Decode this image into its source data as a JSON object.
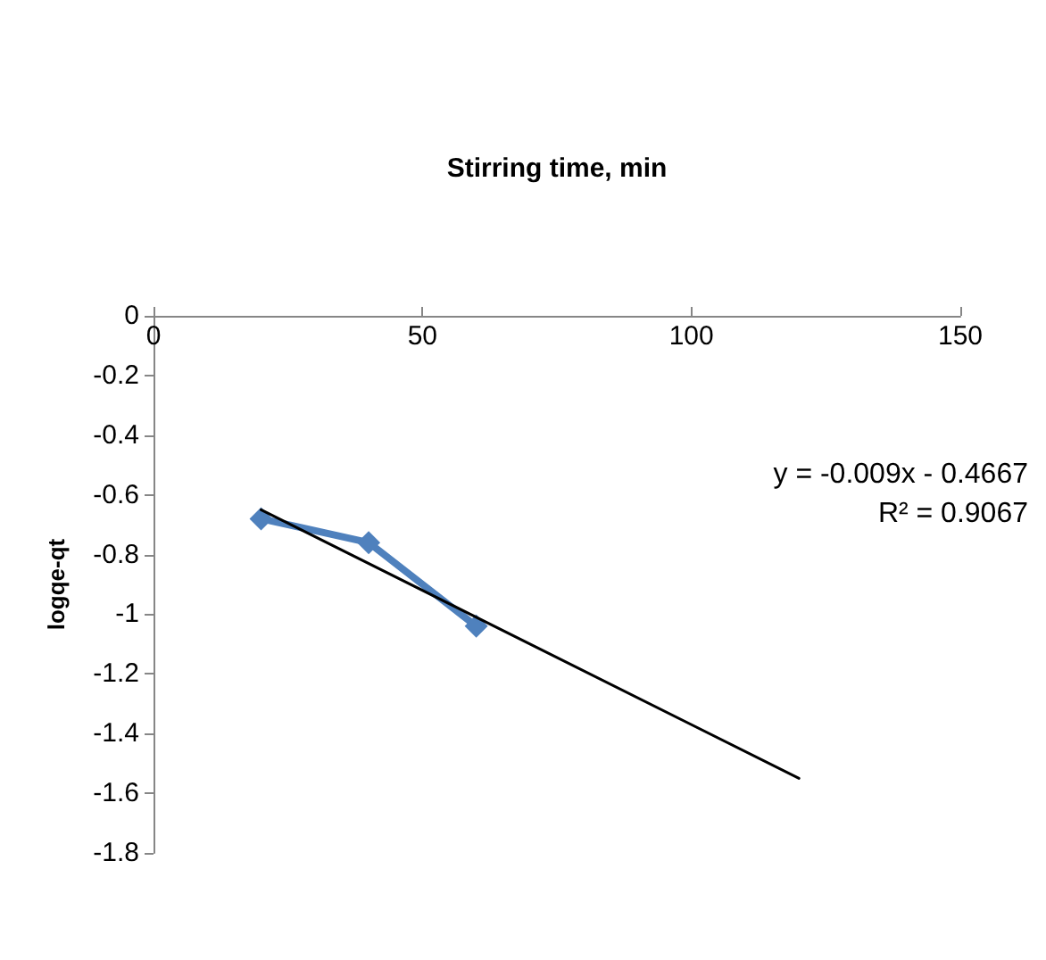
{
  "chart_data": {
    "type": "line",
    "xlabel": "Stirring time, min",
    "ylabel": "logqe-qt",
    "xlim": [
      0,
      150
    ],
    "xticks": [
      0,
      50,
      100,
      150
    ],
    "ylim": [
      -1.8,
      0
    ],
    "yticks": [
      0,
      -0.2,
      -0.4,
      -0.6,
      -0.8,
      -1,
      -1.2,
      -1.4,
      -1.6,
      -1.8
    ],
    "grid": false,
    "marker": "diamond",
    "series": [
      {
        "color": "#4f81bd",
        "x": [
          20,
          40,
          60
        ],
        "values": [
          -0.68,
          -0.76,
          -1.04
        ]
      },
      {
        "type": "line",
        "color": "#000000",
        "marker": "none",
        "x": [
          20,
          120
        ],
        "values": [
          -0.65,
          -1.55
        ]
      }
    ],
    "annotations": [
      "y = -0.009x - 0.4667",
      "R² = 0.9067"
    ]
  }
}
